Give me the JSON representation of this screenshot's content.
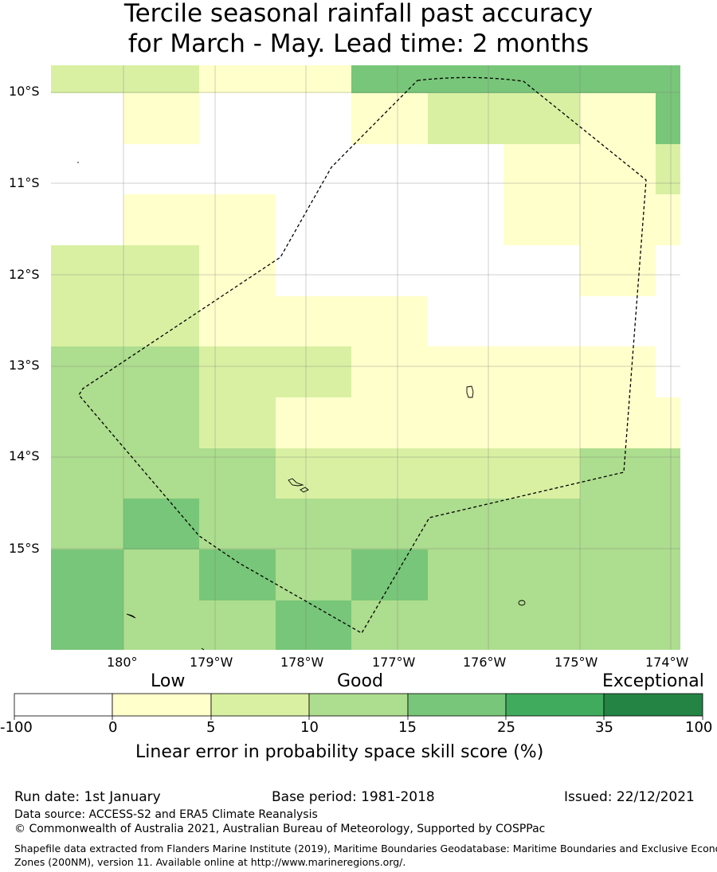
{
  "title": {
    "line1": "Tercile seasonal rainfall past accuracy",
    "line2": "for March - May. Lead time: 2 months"
  },
  "map": {
    "lat_labels": [
      "10°S",
      "11°S",
      "12°S",
      "13°S",
      "14°S",
      "15°S"
    ],
    "lon_labels": [
      "180°",
      "179°W",
      "178°W",
      "177°W",
      "176°W",
      "175°W",
      "174°W"
    ],
    "colors": {
      "c0": "#ffffff",
      "c1": "#ffffcc",
      "c2": "#d9f0a3",
      "c3": "#addd8e",
      "c4": "#78c679",
      "c5": "#41ab5d",
      "c6": "#238443"
    },
    "grid_skill_class": [
      [
        "c2",
        "c2",
        "c1",
        "c1",
        "c4",
        "c4",
        "c4",
        "c4",
        "c4"
      ],
      [
        "c0",
        "c1",
        "c0",
        "c0",
        "c1",
        "c2",
        "c2",
        "c1",
        "c4"
      ],
      [
        "c0",
        "c0",
        "c0",
        "c0",
        "c0",
        "c0",
        "c1",
        "c1",
        "c2"
      ],
      [
        "c0",
        "c1",
        "c1",
        "c0",
        "c0",
        "c0",
        "c1",
        "c1",
        "c1"
      ],
      [
        "c2",
        "c2",
        "c1",
        "c0",
        "c0",
        "c0",
        "c0",
        "c1",
        "c0"
      ],
      [
        "c2",
        "c2",
        "c1",
        "c1",
        "c1",
        "c0",
        "c0",
        "c0",
        "c0"
      ],
      [
        "c3",
        "c3",
        "c2",
        "c2",
        "c1",
        "c1",
        "c1",
        "c1",
        "c0"
      ],
      [
        "c3",
        "c3",
        "c2",
        "c1",
        "c1",
        "c1",
        "c1",
        "c1",
        "c1"
      ],
      [
        "c3",
        "c3",
        "c3",
        "c2",
        "c2",
        "c2",
        "c2",
        "c3",
        "c3"
      ],
      [
        "c3",
        "c4",
        "c3",
        "c3",
        "c3",
        "c3",
        "c3",
        "c3",
        "c3"
      ],
      [
        "c4",
        "c3",
        "c4",
        "c3",
        "c4",
        "c3",
        "c3",
        "c3",
        "c3"
      ],
      [
        "c4",
        "c3",
        "c3",
        "c4",
        "c3",
        "c3",
        "c3",
        "c3",
        "c3"
      ]
    ]
  },
  "colorbar": {
    "category_labels": [
      "Low",
      "Good",
      "Exceptional"
    ],
    "tick_labels": [
      "-100",
      "0",
      "5",
      "10",
      "15",
      "25",
      "35",
      "100"
    ],
    "title": "Linear error in probability space skill score (%)"
  },
  "footer": {
    "run_date": "Run date: 1st January",
    "base_period": "Base period: 1981-2018",
    "issued": "Issued: 22/12/2021",
    "data_source": "Data source: ACCESS-S2 and ERA5 Climate Reanalysis",
    "copyright": "© Commonwealth of Australia 2021, Australian Bureau of Meteorology, Supported by COSPPac",
    "shapefile_line1": "Shapefile data extracted from Flanders Marine Institute (2019), Maritime Boundaries Geodatabase: Maritime Boundaries and Exclusive Economic",
    "shapefile_line2": "Zones (200NM), version 11. Available online at http://www.marineregions.org/."
  }
}
